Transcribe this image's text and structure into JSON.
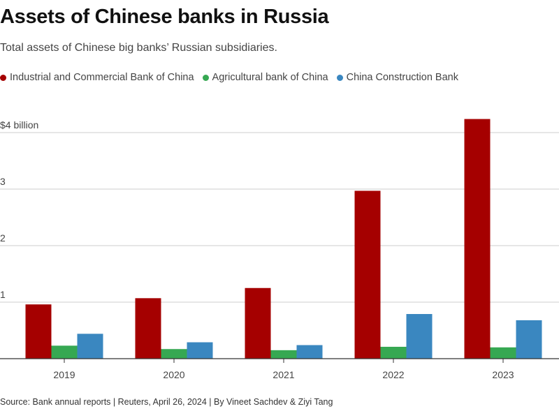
{
  "header": {
    "title": "Assets of Chinese banks in Russia",
    "subtitle": "Total assets of Chinese big banks’ Russian subsidiaries."
  },
  "footer": {
    "source": "Source: Bank annual reports | Reuters, April 26, 2024 | By Vineet Sachdev & Ziyi Tang"
  },
  "chart_data": {
    "type": "bar",
    "title": "Assets of Chinese banks in Russia",
    "subtitle": "Total assets of Chinese big banks’ Russian subsidiaries.",
    "categories": [
      "2019",
      "2020",
      "2021",
      "2022",
      "2023"
    ],
    "series": [
      {
        "name": "Industrial and Commercial Bank of China",
        "color": "#a50000",
        "values": [
          0.96,
          1.07,
          1.25,
          2.97,
          4.24
        ]
      },
      {
        "name": "Agricultural bank of China",
        "color": "#36a852",
        "values": [
          0.23,
          0.17,
          0.15,
          0.21,
          0.2
        ]
      },
      {
        "name": "China Construction Bank",
        "color": "#3a87c0",
        "values": [
          0.44,
          0.29,
          0.24,
          0.79,
          0.68
        ]
      }
    ],
    "y_ticks": [
      1,
      2,
      3,
      4
    ],
    "y_tick_labels": [
      "1",
      "2",
      "3",
      "$4 billion"
    ],
    "ylim": [
      0,
      4.3
    ],
    "grid": true,
    "legend_position": "top-left"
  }
}
